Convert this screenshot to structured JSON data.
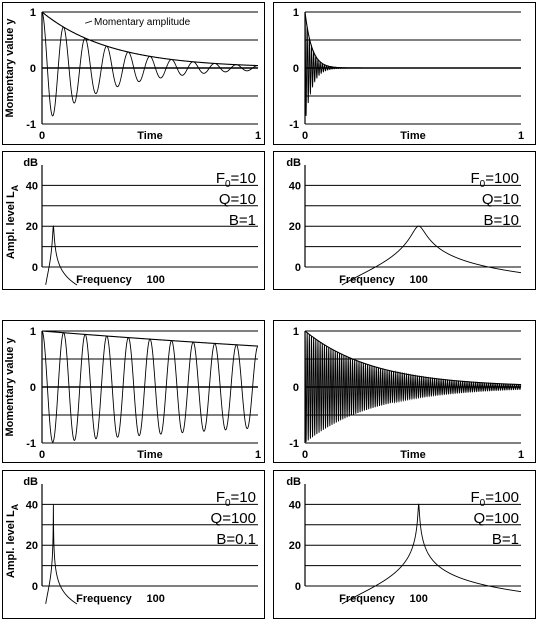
{
  "chart_data": [
    {
      "type": "line",
      "position": "top-left",
      "kind": "time",
      "f0": 10,
      "q": 10,
      "ylabel": "Momentary value y",
      "xlabel": "Time",
      "xlim": [
        0,
        1
      ],
      "ylim": [
        -1,
        1
      ],
      "xticks": [
        "0",
        "1"
      ],
      "yticks": [
        "1",
        "0",
        "-1"
      ],
      "grid": "horizontal",
      "annotation": "Momentary amplitude",
      "series": [
        {
          "role": "signal",
          "formula": "exp(-pi*F0*t/Q)*cos(2*pi*F0*t)"
        },
        {
          "role": "envelope",
          "formula": "exp(-pi*F0*t/Q)"
        }
      ]
    },
    {
      "type": "line",
      "position": "top-right",
      "kind": "time",
      "f0": 100,
      "q": 10,
      "ylabel": "",
      "xlabel": "Time",
      "xlim": [
        0,
        1
      ],
      "ylim": [
        -1,
        1
      ],
      "xticks": [
        "0",
        "1"
      ],
      "yticks": [
        "1",
        "0",
        "-1"
      ],
      "grid": "horizontal",
      "series": [
        {
          "role": "signal",
          "formula": "exp(-pi*F0*t/Q)*cos(2*pi*F0*t)"
        },
        {
          "role": "envelope",
          "formula": "exp(-pi*F0*t/Q)"
        }
      ]
    },
    {
      "type": "line",
      "position": "second-left",
      "kind": "frequency",
      "f0": 10,
      "q": 10,
      "ylabel": "Ampl. level L",
      "ylabel_sub": "A",
      "unit": "dB",
      "xlabel": "Frequency",
      "xlim": [
        0,
        190
      ],
      "ylim": [
        0,
        50
      ],
      "xticks": [
        100
      ],
      "xtick_labels": [
        "100"
      ],
      "yticks": [
        "40",
        "20",
        "0"
      ],
      "grid": "horizontal",
      "params": {
        "f_prefix": "F",
        "f_sub": "0",
        "f_value": "=10",
        "q": "Q=10",
        "b": "B=1"
      },
      "series": [
        {
          "role": "response",
          "peak_db": 20
        }
      ]
    },
    {
      "type": "line",
      "position": "second-right",
      "kind": "frequency",
      "f0": 100,
      "q": 10,
      "ylabel": "",
      "unit": "dB",
      "xlabel": "Frequency",
      "xlim": [
        0,
        190
      ],
      "ylim": [
        0,
        50
      ],
      "xticks": [
        100
      ],
      "xtick_labels": [
        "100"
      ],
      "yticks": [
        "40",
        "20",
        "0"
      ],
      "grid": "horizontal",
      "params": {
        "f_prefix": "F",
        "f_sub": "0",
        "f_value": "=100",
        "q": "Q=10",
        "b": "B=10"
      },
      "series": [
        {
          "role": "response",
          "peak_db": 20
        }
      ]
    },
    {
      "type": "line",
      "position": "third-left",
      "kind": "time",
      "f0": 10,
      "q": 100,
      "ylabel": "Momentary value y",
      "xlabel": "Time",
      "xlim": [
        0,
        1
      ],
      "ylim": [
        -1,
        1
      ],
      "xticks": [
        "0",
        "1"
      ],
      "yticks": [
        "1",
        "0",
        "-1"
      ],
      "grid": "horizontal",
      "series": [
        {
          "role": "signal",
          "formula": "exp(-pi*F0*t/Q)*cos(2*pi*F0*t)"
        },
        {
          "role": "envelope",
          "formula": "exp(-pi*F0*t/Q)"
        }
      ]
    },
    {
      "type": "line",
      "position": "third-right",
      "kind": "time",
      "f0": 100,
      "q": 100,
      "ylabel": "",
      "xlabel": "Time",
      "xlim": [
        0,
        1
      ],
      "ylim": [
        -1,
        1
      ],
      "xticks": [
        "0",
        "1"
      ],
      "yticks": [
        "1",
        "0",
        "-1"
      ],
      "grid": "horizontal",
      "series": [
        {
          "role": "signal",
          "formula": "exp(-pi*F0*t/Q)*cos(2*pi*F0*t)"
        },
        {
          "role": "envelope",
          "formula": "exp(-pi*F0*t/Q)"
        }
      ]
    },
    {
      "type": "line",
      "position": "bottom-left",
      "kind": "frequency",
      "f0": 10,
      "q": 100,
      "ylabel": "Ampl. level L",
      "ylabel_sub": "A",
      "unit": "dB",
      "xlabel": "Frequency",
      "xlim": [
        0,
        190
      ],
      "ylim": [
        0,
        50
      ],
      "xticks": [
        100
      ],
      "xtick_labels": [
        "100"
      ],
      "yticks": [
        "40",
        "20",
        "0"
      ],
      "grid": "horizontal",
      "params": {
        "f_prefix": "F",
        "f_sub": "0",
        "f_value": "=10",
        "q": "Q=100",
        "b": "B=0.1"
      },
      "series": [
        {
          "role": "response",
          "peak_db": 40
        }
      ]
    },
    {
      "type": "line",
      "position": "bottom-right",
      "kind": "frequency",
      "f0": 100,
      "q": 100,
      "ylabel": "",
      "unit": "dB",
      "xlabel": "Frequency",
      "xlim": [
        0,
        190
      ],
      "ylim": [
        0,
        50
      ],
      "xticks": [
        100
      ],
      "xtick_labels": [
        "100"
      ],
      "yticks": [
        "40",
        "20",
        "0"
      ],
      "grid": "horizontal",
      "params": {
        "f_prefix": "F",
        "f_sub": "0",
        "f_value": "=100",
        "q": "Q=100",
        "b": "B=1"
      },
      "series": [
        {
          "role": "response",
          "peak_db": 40
        }
      ]
    }
  ]
}
